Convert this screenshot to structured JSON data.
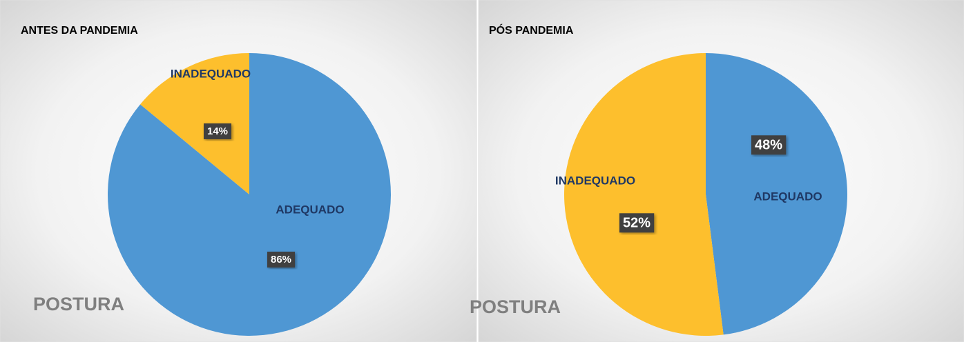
{
  "chart_data": [
    {
      "type": "pie",
      "title": "ANTES DA PANDEMIA",
      "annotation": "POSTURA",
      "categories": [
        "ADEQUADO",
        "INADEQUADO"
      ],
      "values": [
        86,
        14
      ],
      "value_labels": [
        "86%",
        "14%"
      ],
      "colors": [
        "#4f97d3",
        "#fdbf2d"
      ]
    },
    {
      "type": "pie",
      "title": "PÓS PANDEMIA",
      "annotation": "POSTURA",
      "categories": [
        "ADEQUADO",
        "INADEQUADO"
      ],
      "values": [
        48,
        52
      ],
      "value_labels": [
        "48%",
        "52%"
      ],
      "colors": [
        "#4f97d3",
        "#fdbf2d"
      ]
    }
  ]
}
